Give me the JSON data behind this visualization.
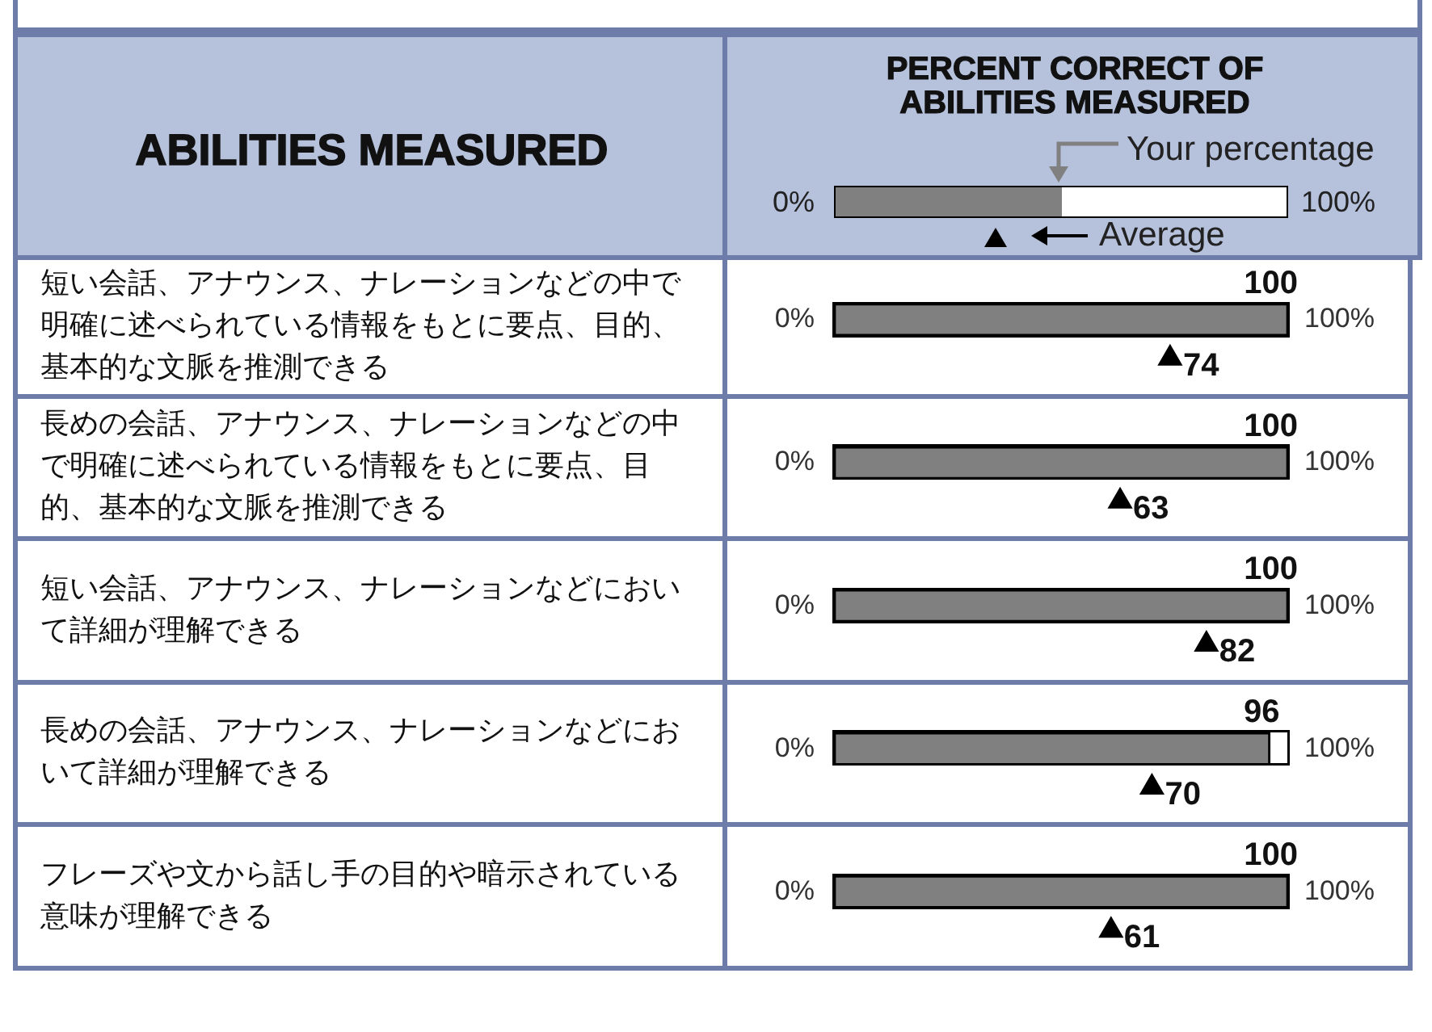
{
  "chart_data": {
    "type": "bar",
    "orientation": "horizontal",
    "title": "PERCENT CORRECT OF ABILITIES MEASURED",
    "ylabel": "ABILITIES MEASURED",
    "categories": [
      "短い会話、アナウンス、ナレーションなどの中で明確に述べられている情報をもとに要点、目的、基本的な文脈を推測できる",
      "長めの会話、アナウンス、ナレーションなどの中で明確に述べられている情報をもとに要点、目的、基本的な文脈を推測できる",
      "短い会話、アナウンス、ナレーションなどにおいて詳細が理解できる",
      "長めの会話、アナウンス、ナレーションなどにおいて詳細が理解できる",
      "フレーズや文から話し手の目的や暗示されている意味が理解できる"
    ],
    "xlim": [
      0,
      100
    ],
    "annotations": [
      "0%",
      "100%"
    ],
    "data_labels": true,
    "legend": "top",
    "marker": "triangle",
    "series": [
      {
        "name": "Your percentage",
        "color": "#808080",
        "values": [
          100,
          100,
          100,
          96,
          100
        ]
      },
      {
        "name": "Average",
        "type": "scatter",
        "color": "#000000",
        "values": [
          74,
          63,
          82,
          70,
          61
        ]
      }
    ]
  }
}
